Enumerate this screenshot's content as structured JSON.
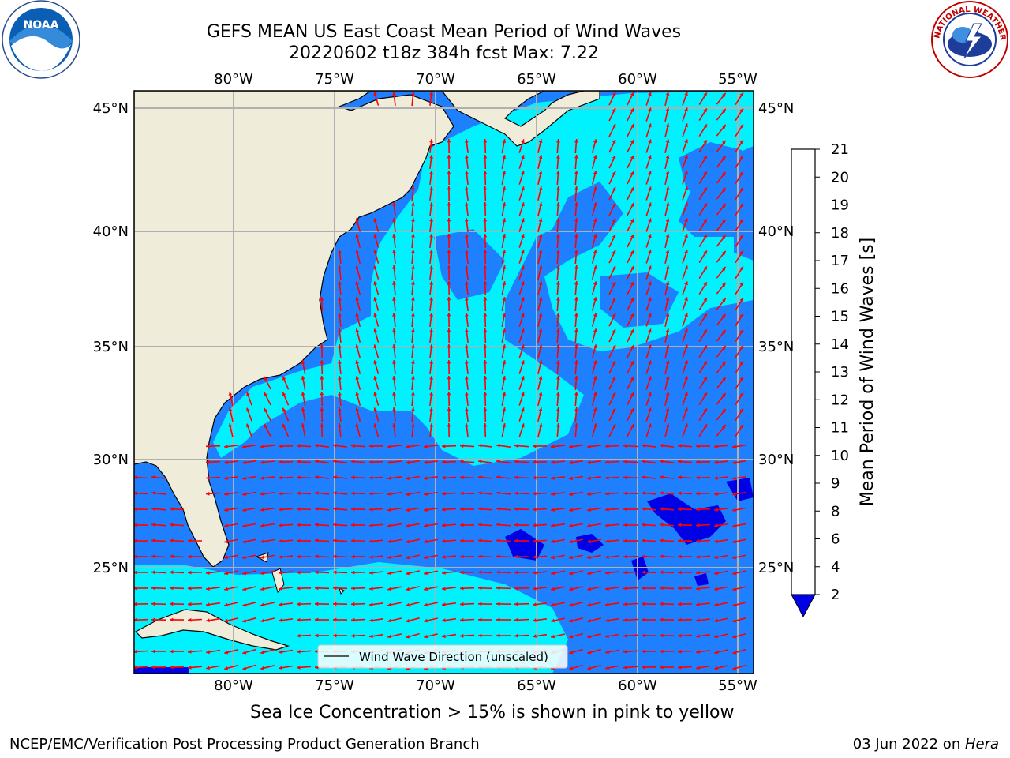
{
  "header": {
    "title_line1": "GEFS MEAN US East Coast Mean Period of Wind Waves",
    "title_line2": "20220602 t18z 384h fcst   Max: 7.22"
  },
  "logos": {
    "left": {
      "icon": "noaa-logo",
      "text": "NOAA"
    },
    "right": {
      "icon": "nws-logo",
      "text": "NATIONAL WEATHER SERVICE"
    }
  },
  "map": {
    "lon_labels": [
      "80°W",
      "75°W",
      "70°W",
      "65°W",
      "60°W",
      "55°W"
    ],
    "lat_labels": [
      "45°N",
      "40°N",
      "35°N",
      "30°N",
      "25°N"
    ],
    "legend_label": "Wind Wave Direction (unscaled)",
    "colors": {
      "land": "#efedda",
      "band_2_4": "#1e80ff",
      "band_4_6": "#00f2ff",
      "band_below_2": "#0000e6",
      "arrows": "#ff0000",
      "grid": "#b0b0b0"
    }
  },
  "colorbar": {
    "label": "Mean Period of Wind Waves [s]",
    "ticks": [
      "2",
      "4",
      "6",
      "8",
      "9",
      "10",
      "11",
      "12",
      "13",
      "14",
      "15",
      "16",
      "17",
      "18",
      "19",
      "20",
      "21"
    ],
    "colors": [
      "#1e78ff",
      "#00f2ff",
      "#4cf7ff",
      "#a0fbff",
      "#4ef777",
      "#00e600",
      "#55e600",
      "#99e600",
      "#cdf000",
      "#e8f500",
      "#ffff00",
      "#ffe000",
      "#ffbf00",
      "#ff9f00",
      "#ff7800",
      "#ff4c00",
      "#ff0000"
    ]
  },
  "footer": {
    "sea_ice_note": "Sea Ice Concentration > 15% is shown in pink to yellow",
    "credit": "NCEP/EMC/Verification Post Processing Product Generation Branch",
    "date_prefix": "03 Jun 2022 on ",
    "date_machine": "Hera"
  }
}
